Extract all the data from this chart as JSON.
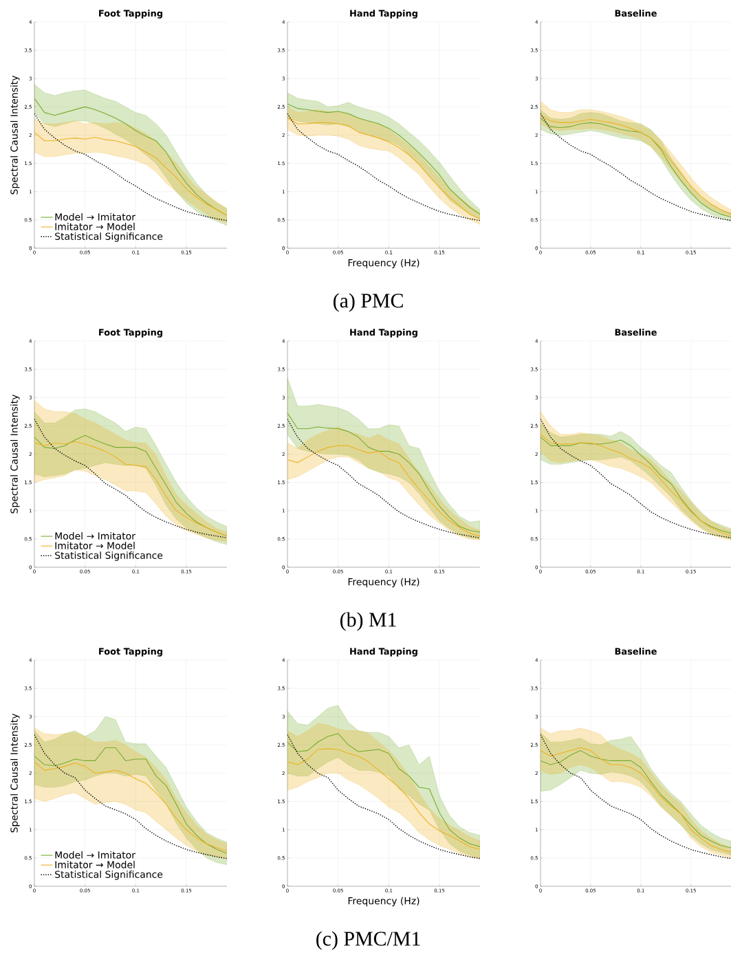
{
  "chart_data": [
    {
      "type": "line",
      "title": "Foot Tapping",
      "ylabel": "Spectral Causal Intensity",
      "x": [
        0,
        0.01,
        0.02,
        0.03,
        0.04,
        0.05,
        0.06,
        0.07,
        0.08,
        0.09,
        0.1,
        0.11,
        0.12,
        0.13,
        0.14,
        0.15,
        0.16,
        0.17,
        0.18,
        0.19
      ],
      "xlim": [
        0,
        0.19
      ],
      "ylim": [
        0,
        4
      ],
      "xticks": [
        0,
        0.05,
        0.1,
        0.15
      ],
      "yticks": [
        0,
        0.5,
        1,
        1.5,
        2,
        2.5,
        3,
        3.5,
        4
      ],
      "grid": true,
      "legend": "bottom left",
      "series": [
        {
          "name": "Model → Imitator",
          "color": "#77ac30",
          "values": [
            2.65,
            2.4,
            2.35,
            2.4,
            2.45,
            2.5,
            2.45,
            2.38,
            2.3,
            2.2,
            2.08,
            1.98,
            1.9,
            1.7,
            1.4,
            1.15,
            0.95,
            0.8,
            0.68,
            0.58
          ],
          "lower": [
            2.4,
            2.2,
            2.15,
            2.2,
            2.25,
            2.25,
            2.2,
            2.12,
            2.02,
            1.92,
            1.8,
            1.65,
            1.5,
            1.25,
            1.0,
            0.8,
            0.65,
            0.55,
            0.48,
            0.4
          ],
          "upper": [
            2.9,
            2.75,
            2.7,
            2.75,
            2.78,
            2.8,
            2.72,
            2.65,
            2.6,
            2.5,
            2.4,
            2.35,
            2.2,
            2.0,
            1.7,
            1.4,
            1.15,
            0.95,
            0.8,
            0.7
          ]
        },
        {
          "name": "Imitator → Model",
          "color": "#edb120",
          "values": [
            2.05,
            1.9,
            1.9,
            1.93,
            1.95,
            1.93,
            1.96,
            1.92,
            1.9,
            1.85,
            1.8,
            1.7,
            1.6,
            1.42,
            1.25,
            1.05,
            0.9,
            0.78,
            0.68,
            0.58
          ],
          "lower": [
            1.7,
            1.62,
            1.62,
            1.65,
            1.68,
            1.68,
            1.7,
            1.68,
            1.63,
            1.6,
            1.55,
            1.48,
            1.35,
            1.15,
            1.0,
            0.85,
            0.72,
            0.6,
            0.5,
            0.45
          ],
          "upper": [
            2.3,
            2.2,
            2.2,
            2.22,
            2.25,
            2.2,
            2.22,
            2.2,
            2.22,
            2.2,
            2.12,
            2.02,
            1.9,
            1.7,
            1.5,
            1.28,
            1.08,
            0.95,
            0.82,
            0.7
          ]
        },
        {
          "name": "Statistical Significance",
          "color": "#000000",
          "line_style": "dotted",
          "values": [
            2.38,
            2.1,
            1.95,
            1.82,
            1.72,
            1.66,
            1.55,
            1.45,
            1.33,
            1.2,
            1.1,
            0.98,
            0.88,
            0.8,
            0.72,
            0.65,
            0.6,
            0.56,
            0.52,
            0.49
          ]
        }
      ]
    },
    {
      "type": "line",
      "title": "Hand Tapping",
      "xlabel": "Frequency (Hz)",
      "annotations": [
        "(a) PMC"
      ],
      "x": [
        0,
        0.01,
        0.02,
        0.03,
        0.04,
        0.05,
        0.06,
        0.07,
        0.08,
        0.09,
        0.1,
        0.11,
        0.12,
        0.13,
        0.14,
        0.15,
        0.16,
        0.17,
        0.18,
        0.19
      ],
      "xlim": [
        0,
        0.19
      ],
      "ylim": [
        0,
        4
      ],
      "xticks": [
        0,
        0.05,
        0.1,
        0.15
      ],
      "yticks": [
        0,
        0.5,
        1,
        1.5,
        2,
        2.5,
        3,
        3.5,
        4
      ],
      "grid": true,
      "series": [
        {
          "color": "#77ac30",
          "values": [
            2.55,
            2.47,
            2.45,
            2.42,
            2.4,
            2.42,
            2.38,
            2.3,
            2.25,
            2.2,
            2.12,
            2.0,
            1.85,
            1.68,
            1.5,
            1.3,
            1.05,
            0.88,
            0.72,
            0.6
          ],
          "lower": [
            2.3,
            2.25,
            2.22,
            2.2,
            2.18,
            2.2,
            2.15,
            2.07,
            2.0,
            1.95,
            1.9,
            1.82,
            1.65,
            1.48,
            1.28,
            1.08,
            0.85,
            0.72,
            0.6,
            0.52
          ],
          "upper": [
            2.75,
            2.65,
            2.62,
            2.6,
            2.5,
            2.52,
            2.58,
            2.5,
            2.45,
            2.4,
            2.32,
            2.2,
            2.05,
            1.9,
            1.72,
            1.52,
            1.28,
            1.05,
            0.85,
            0.68
          ]
        },
        {
          "color": "#edb120",
          "values": [
            2.3,
            2.2,
            2.2,
            2.22,
            2.22,
            2.2,
            2.17,
            2.05,
            2.0,
            1.95,
            1.88,
            1.78,
            1.65,
            1.48,
            1.27,
            1.07,
            0.9,
            0.75,
            0.6,
            0.52
          ],
          "lower": [
            2.1,
            2.0,
            1.98,
            2.0,
            2.0,
            1.98,
            1.93,
            1.82,
            1.77,
            1.74,
            1.72,
            1.6,
            1.45,
            1.3,
            1.08,
            0.88,
            0.72,
            0.6,
            0.5,
            0.42
          ],
          "upper": [
            2.5,
            2.4,
            2.42,
            2.45,
            2.42,
            2.4,
            2.38,
            2.3,
            2.25,
            2.2,
            2.1,
            1.95,
            1.82,
            1.65,
            1.45,
            1.25,
            1.05,
            0.9,
            0.75,
            0.62
          ]
        },
        {
          "color": "#000000",
          "line_style": "dotted",
          "values": [
            2.38,
            2.1,
            1.95,
            1.82,
            1.72,
            1.66,
            1.55,
            1.45,
            1.33,
            1.2,
            1.1,
            0.98,
            0.88,
            0.8,
            0.72,
            0.65,
            0.6,
            0.56,
            0.52,
            0.49
          ]
        }
      ]
    },
    {
      "type": "line",
      "title": "Baseline",
      "x": [
        0,
        0.01,
        0.02,
        0.03,
        0.04,
        0.05,
        0.06,
        0.07,
        0.08,
        0.09,
        0.1,
        0.11,
        0.12,
        0.13,
        0.14,
        0.15,
        0.16,
        0.17,
        0.18,
        0.19
      ],
      "xlim": [
        0,
        0.19
      ],
      "ylim": [
        0,
        4
      ],
      "xticks": [
        0,
        0.05,
        0.1,
        0.15
      ],
      "yticks": [
        0,
        0.5,
        1,
        1.5,
        2,
        2.5,
        3,
        3.5,
        4
      ],
      "grid": true,
      "series": [
        {
          "color": "#77ac30",
          "values": [
            2.3,
            2.15,
            2.13,
            2.15,
            2.2,
            2.22,
            2.2,
            2.15,
            2.1,
            2.07,
            2.05,
            1.95,
            1.75,
            1.45,
            1.2,
            0.98,
            0.8,
            0.68,
            0.6,
            0.55
          ],
          "lower": [
            2.1,
            2.02,
            2.0,
            2.02,
            2.05,
            2.08,
            2.05,
            2.0,
            1.95,
            1.93,
            1.9,
            1.8,
            1.58,
            1.3,
            1.05,
            0.85,
            0.7,
            0.6,
            0.53,
            0.48
          ],
          "upper": [
            2.45,
            2.3,
            2.28,
            2.3,
            2.38,
            2.4,
            2.38,
            2.32,
            2.25,
            2.22,
            2.2,
            2.1,
            1.9,
            1.6,
            1.35,
            1.1,
            0.9,
            0.78,
            0.68,
            0.62
          ]
        },
        {
          "color": "#edb120",
          "values": [
            2.35,
            2.25,
            2.22,
            2.22,
            2.25,
            2.28,
            2.25,
            2.22,
            2.18,
            2.12,
            2.05,
            1.95,
            1.78,
            1.55,
            1.32,
            1.1,
            0.92,
            0.78,
            0.68,
            0.6
          ],
          "lower": [
            2.2,
            2.1,
            2.08,
            2.1,
            2.1,
            2.12,
            2.1,
            2.07,
            2.03,
            1.98,
            1.92,
            1.8,
            1.62,
            1.4,
            1.18,
            0.98,
            0.82,
            0.7,
            0.62,
            0.55
          ],
          "upper": [
            2.6,
            2.45,
            2.4,
            2.4,
            2.45,
            2.45,
            2.42,
            2.38,
            2.33,
            2.27,
            2.18,
            2.08,
            1.92,
            1.7,
            1.48,
            1.25,
            1.05,
            0.9,
            0.78,
            0.68
          ]
        },
        {
          "color": "#000000",
          "line_style": "dotted",
          "values": [
            2.38,
            2.1,
            1.95,
            1.82,
            1.72,
            1.66,
            1.55,
            1.45,
            1.33,
            1.2,
            1.1,
            0.98,
            0.88,
            0.8,
            0.72,
            0.65,
            0.6,
            0.56,
            0.52,
            0.49
          ]
        }
      ]
    },
    {
      "type": "line",
      "title": "Foot Tapping",
      "ylabel": "Spectral Causal Intensity",
      "x": [
        0,
        0.01,
        0.02,
        0.03,
        0.04,
        0.05,
        0.06,
        0.07,
        0.08,
        0.09,
        0.1,
        0.11,
        0.12,
        0.13,
        0.14,
        0.15,
        0.16,
        0.17,
        0.18,
        0.19
      ],
      "xlim": [
        0,
        0.19
      ],
      "ylim": [
        0,
        4
      ],
      "xticks": [
        0,
        0.05,
        0.1,
        0.15
      ],
      "yticks": [
        0,
        0.5,
        1,
        1.5,
        2,
        2.5,
        3,
        3.5,
        4
      ],
      "grid": true,
      "legend": "bottom left",
      "series": [
        {
          "name": "Model → Imitator",
          "color": "#77ac30",
          "values": [
            2.3,
            2.12,
            2.1,
            2.15,
            2.25,
            2.33,
            2.25,
            2.18,
            2.12,
            2.12,
            2.12,
            2.05,
            1.75,
            1.45,
            1.15,
            0.95,
            0.8,
            0.7,
            0.62,
            0.55
          ],
          "lower": [
            1.65,
            1.6,
            1.62,
            1.65,
            1.72,
            1.75,
            1.8,
            1.85,
            1.82,
            1.8,
            1.8,
            1.75,
            1.45,
            1.1,
            0.85,
            0.7,
            0.6,
            0.52,
            0.45,
            0.4
          ],
          "upper": [
            2.75,
            2.55,
            2.55,
            2.65,
            2.78,
            2.8,
            2.75,
            2.65,
            2.55,
            2.4,
            2.48,
            2.45,
            2.15,
            1.82,
            1.5,
            1.25,
            1.05,
            0.9,
            0.8,
            0.72
          ]
        },
        {
          "name": "Imitator → Model",
          "color": "#edb120",
          "values": [
            2.2,
            2.15,
            2.2,
            2.18,
            2.22,
            2.18,
            2.12,
            2.05,
            1.95,
            1.82,
            1.8,
            1.78,
            1.55,
            1.25,
            1.0,
            0.88,
            0.78,
            0.7,
            0.62,
            0.55
          ],
          "lower": [
            1.5,
            1.55,
            1.58,
            1.62,
            1.72,
            1.7,
            1.62,
            1.55,
            1.45,
            1.35,
            1.35,
            1.32,
            1.12,
            0.9,
            0.75,
            0.65,
            0.58,
            0.52,
            0.48,
            0.45
          ],
          "upper": [
            2.95,
            2.8,
            2.75,
            2.75,
            2.72,
            2.62,
            2.55,
            2.45,
            2.35,
            2.25,
            2.2,
            2.2,
            1.98,
            1.6,
            1.28,
            1.1,
            0.95,
            0.8,
            0.68,
            0.62
          ]
        },
        {
          "name": "Statistical Significance",
          "color": "#000000",
          "line_style": "dotted",
          "values": [
            2.62,
            2.3,
            2.1,
            1.98,
            1.88,
            1.8,
            1.65,
            1.48,
            1.38,
            1.27,
            1.12,
            0.98,
            0.88,
            0.8,
            0.73,
            0.67,
            0.62,
            0.58,
            0.55,
            0.52
          ]
        }
      ]
    },
    {
      "type": "line",
      "title": "Hand Tapping",
      "xlabel": "Frequency (Hz)",
      "annotations": [
        "(b) M1"
      ],
      "x": [
        0,
        0.01,
        0.02,
        0.03,
        0.04,
        0.05,
        0.06,
        0.07,
        0.08,
        0.09,
        0.1,
        0.11,
        0.12,
        0.13,
        0.14,
        0.15,
        0.16,
        0.17,
        0.18,
        0.19
      ],
      "xlim": [
        0,
        0.19
      ],
      "ylim": [
        0,
        4
      ],
      "xticks": [
        0,
        0.05,
        0.1,
        0.15
      ],
      "yticks": [
        0,
        0.5,
        1,
        1.5,
        2,
        2.5,
        3,
        3.5,
        4
      ],
      "grid": true,
      "series": [
        {
          "color": "#77ac30",
          "values": [
            2.73,
            2.45,
            2.45,
            2.48,
            2.46,
            2.45,
            2.4,
            2.3,
            2.12,
            2.05,
            2.05,
            2.0,
            1.85,
            1.65,
            1.35,
            1.08,
            0.88,
            0.72,
            0.65,
            0.62
          ],
          "lower": [
            2.35,
            2.1,
            2.05,
            2.02,
            2.0,
            2.0,
            1.98,
            1.9,
            1.75,
            1.68,
            1.65,
            1.6,
            1.5,
            1.3,
            1.05,
            0.82,
            0.68,
            0.58,
            0.52,
            0.5
          ],
          "upper": [
            3.35,
            2.85,
            2.85,
            2.88,
            2.85,
            2.82,
            2.75,
            2.62,
            2.45,
            2.45,
            2.52,
            2.5,
            2.15,
            2.1,
            1.7,
            1.35,
            1.1,
            0.9,
            0.8,
            0.82
          ]
        },
        {
          "color": "#edb120",
          "values": [
            1.9,
            1.85,
            1.95,
            2.05,
            2.12,
            2.15,
            2.15,
            2.08,
            2.02,
            2.05,
            1.92,
            1.85,
            1.6,
            1.38,
            1.18,
            0.98,
            0.82,
            0.7,
            0.6,
            0.55
          ],
          "lower": [
            1.55,
            1.6,
            1.7,
            1.8,
            1.9,
            1.95,
            1.95,
            1.85,
            1.75,
            1.7,
            1.58,
            1.52,
            1.3,
            1.1,
            0.92,
            0.78,
            0.65,
            0.55,
            0.5,
            0.48
          ],
          "upper": [
            2.2,
            2.1,
            2.25,
            2.35,
            2.42,
            2.48,
            2.4,
            2.35,
            2.28,
            2.35,
            2.25,
            2.18,
            1.92,
            1.68,
            1.45,
            1.2,
            1.0,
            0.85,
            0.72,
            0.65
          ]
        },
        {
          "color": "#000000",
          "line_style": "dotted",
          "values": [
            2.62,
            2.3,
            2.1,
            1.98,
            1.88,
            1.8,
            1.65,
            1.48,
            1.38,
            1.27,
            1.12,
            0.98,
            0.88,
            0.8,
            0.73,
            0.67,
            0.62,
            0.58,
            0.55,
            0.52
          ]
        }
      ]
    },
    {
      "type": "line",
      "title": "Baseline",
      "x": [
        0,
        0.01,
        0.02,
        0.03,
        0.04,
        0.05,
        0.06,
        0.07,
        0.08,
        0.09,
        0.1,
        0.11,
        0.12,
        0.13,
        0.14,
        0.15,
        0.16,
        0.17,
        0.18,
        0.19
      ],
      "xlim": [
        0,
        0.19
      ],
      "ylim": [
        0,
        4
      ],
      "xticks": [
        0,
        0.05,
        0.1,
        0.15
      ],
      "yticks": [
        0,
        0.5,
        1,
        1.5,
        2,
        2.5,
        3,
        3.5,
        4
      ],
      "grid": true,
      "series": [
        {
          "color": "#77ac30",
          "values": [
            2.3,
            2.15,
            2.15,
            2.15,
            2.2,
            2.18,
            2.18,
            2.2,
            2.25,
            2.15,
            1.98,
            1.82,
            1.62,
            1.48,
            1.22,
            1.0,
            0.82,
            0.72,
            0.65,
            0.6
          ],
          "lower": [
            1.9,
            1.82,
            1.82,
            1.85,
            1.88,
            1.9,
            1.9,
            1.92,
            1.95,
            1.88,
            1.75,
            1.6,
            1.42,
            1.25,
            1.02,
            0.85,
            0.7,
            0.6,
            0.55,
            0.5
          ],
          "upper": [
            2.55,
            2.38,
            2.3,
            2.32,
            2.35,
            2.36,
            2.35,
            2.32,
            2.4,
            2.3,
            2.12,
            1.98,
            1.8,
            1.68,
            1.42,
            1.18,
            0.98,
            0.82,
            0.75,
            0.68
          ]
        },
        {
          "color": "#edb120",
          "values": [
            2.35,
            2.2,
            2.18,
            2.18,
            2.2,
            2.2,
            2.15,
            2.08,
            2.02,
            1.92,
            1.85,
            1.75,
            1.55,
            1.35,
            1.18,
            0.98,
            0.82,
            0.7,
            0.62,
            0.55
          ],
          "lower": [
            2.05,
            1.88,
            1.85,
            1.88,
            1.9,
            1.9,
            1.85,
            1.78,
            1.75,
            1.68,
            1.6,
            1.5,
            1.32,
            1.15,
            0.98,
            0.82,
            0.68,
            0.58,
            0.52,
            0.48
          ],
          "upper": [
            2.75,
            2.5,
            2.35,
            2.35,
            2.38,
            2.35,
            2.32,
            2.25,
            2.2,
            2.08,
            2.0,
            1.9,
            1.72,
            1.52,
            1.35,
            1.15,
            0.95,
            0.82,
            0.72,
            0.65
          ]
        },
        {
          "color": "#000000",
          "line_style": "dotted",
          "values": [
            2.62,
            2.3,
            2.1,
            1.98,
            1.88,
            1.8,
            1.65,
            1.48,
            1.38,
            1.27,
            1.12,
            0.98,
            0.88,
            0.8,
            0.73,
            0.67,
            0.62,
            0.58,
            0.55,
            0.52
          ]
        }
      ]
    },
    {
      "type": "line",
      "title": "Foot Tapping",
      "ylabel": "Spectral Causal Intensity",
      "x": [
        0,
        0.01,
        0.02,
        0.03,
        0.04,
        0.05,
        0.06,
        0.07,
        0.08,
        0.09,
        0.1,
        0.11,
        0.12,
        0.13,
        0.14,
        0.15,
        0.16,
        0.17,
        0.18,
        0.19
      ],
      "xlim": [
        0,
        0.19
      ],
      "ylim": [
        0,
        4
      ],
      "xticks": [
        0,
        0.05,
        0.1,
        0.15
      ],
      "yticks": [
        0,
        0.5,
        1,
        1.5,
        2,
        2.5,
        3,
        3.5,
        4
      ],
      "grid": true,
      "legend": "bottom left",
      "series": [
        {
          "name": "Model → Imitator",
          "color": "#77ac30",
          "values": [
            2.3,
            2.15,
            2.13,
            2.18,
            2.25,
            2.22,
            2.22,
            2.45,
            2.45,
            2.22,
            2.25,
            2.25,
            1.95,
            1.78,
            1.45,
            1.1,
            0.9,
            0.75,
            0.65,
            0.58
          ],
          "lower": [
            1.8,
            1.75,
            1.75,
            1.78,
            1.85,
            1.88,
            1.95,
            2.0,
            2.0,
            1.95,
            1.98,
            1.95,
            1.7,
            1.45,
            1.12,
            0.85,
            0.65,
            0.5,
            0.42,
            0.38
          ],
          "upper": [
            2.75,
            2.55,
            2.6,
            2.7,
            2.75,
            2.65,
            2.75,
            3.0,
            2.95,
            2.55,
            2.52,
            2.52,
            2.3,
            2.1,
            1.75,
            1.4,
            1.15,
            0.95,
            0.85,
            0.78
          ]
        },
        {
          "name": "Imitator → Model",
          "color": "#edb120",
          "values": [
            2.2,
            2.05,
            2.08,
            2.12,
            2.18,
            2.12,
            2.0,
            2.02,
            2.05,
            2.0,
            1.9,
            1.82,
            1.65,
            1.45,
            1.2,
            1.0,
            0.85,
            0.75,
            0.68,
            0.62
          ],
          "lower": [
            1.55,
            1.5,
            1.55,
            1.62,
            1.65,
            1.55,
            1.45,
            1.48,
            1.5,
            1.45,
            1.35,
            1.3,
            1.15,
            1.0,
            0.85,
            0.72,
            0.62,
            0.55,
            0.52,
            0.5
          ],
          "upper": [
            2.8,
            2.7,
            2.68,
            2.7,
            2.72,
            2.65,
            2.55,
            2.55,
            2.58,
            2.5,
            2.38,
            2.28,
            2.1,
            1.88,
            1.55,
            1.3,
            1.08,
            0.92,
            0.82,
            0.75
          ]
        },
        {
          "name": "Statistical Significance",
          "color": "#000000",
          "line_style": "dotted",
          "values": [
            2.68,
            2.35,
            2.15,
            2.0,
            1.92,
            1.7,
            1.55,
            1.42,
            1.35,
            1.28,
            1.18,
            1.02,
            0.9,
            0.8,
            0.72,
            0.65,
            0.6,
            0.56,
            0.52,
            0.49
          ]
        }
      ]
    },
    {
      "type": "line",
      "title": "Hand Tapping",
      "xlabel": "Frequency (Hz)",
      "annotations": [
        "(c) PMC/M1"
      ],
      "x": [
        0,
        0.01,
        0.02,
        0.03,
        0.04,
        0.05,
        0.06,
        0.07,
        0.08,
        0.09,
        0.1,
        0.11,
        0.12,
        0.13,
        0.14,
        0.15,
        0.16,
        0.17,
        0.18,
        0.19
      ],
      "xlim": [
        0,
        0.19
      ],
      "ylim": [
        0,
        4
      ],
      "xticks": [
        0,
        0.05,
        0.1,
        0.15
      ],
      "yticks": [
        0,
        0.5,
        1,
        1.5,
        2,
        2.5,
        3,
        3.5,
        4
      ],
      "grid": true,
      "series": [
        {
          "color": "#77ac30",
          "values": [
            2.55,
            2.38,
            2.4,
            2.55,
            2.65,
            2.7,
            2.5,
            2.38,
            2.4,
            2.42,
            2.35,
            2.08,
            1.95,
            1.75,
            1.72,
            1.3,
            1.0,
            0.85,
            0.75,
            0.7
          ],
          "lower": [
            2.0,
            1.95,
            1.95,
            2.08,
            2.2,
            2.28,
            2.15,
            2.05,
            2.05,
            2.02,
            1.95,
            1.72,
            1.6,
            1.45,
            1.35,
            1.0,
            0.75,
            0.62,
            0.55,
            0.5
          ],
          "upper": [
            3.1,
            2.88,
            2.85,
            3.0,
            3.15,
            3.2,
            2.9,
            2.75,
            2.72,
            2.72,
            2.65,
            2.45,
            2.5,
            2.15,
            2.3,
            1.6,
            1.25,
            1.05,
            0.95,
            0.9
          ]
        },
        {
          "color": "#edb120",
          "values": [
            2.2,
            2.15,
            2.25,
            2.42,
            2.43,
            2.42,
            2.35,
            2.3,
            2.2,
            2.05,
            1.9,
            1.75,
            1.55,
            1.3,
            1.1,
            0.98,
            0.9,
            0.8,
            0.7,
            0.65
          ],
          "lower": [
            1.7,
            1.75,
            1.85,
            1.92,
            2.0,
            2.0,
            1.88,
            1.8,
            1.68,
            1.55,
            1.4,
            1.3,
            1.15,
            0.95,
            0.82,
            0.72,
            0.65,
            0.58,
            0.52,
            0.48
          ],
          "upper": [
            2.75,
            2.65,
            2.75,
            2.88,
            2.85,
            2.78,
            2.75,
            2.75,
            2.7,
            2.55,
            2.4,
            2.2,
            1.95,
            1.65,
            1.38,
            1.2,
            1.08,
            0.98,
            0.88,
            0.8
          ]
        },
        {
          "color": "#000000",
          "line_style": "dotted",
          "values": [
            2.68,
            2.35,
            2.15,
            2.0,
            1.92,
            1.7,
            1.55,
            1.42,
            1.35,
            1.28,
            1.18,
            1.02,
            0.9,
            0.8,
            0.72,
            0.65,
            0.6,
            0.56,
            0.52,
            0.49
          ]
        }
      ]
    },
    {
      "type": "line",
      "title": "Baseline",
      "x": [
        0,
        0.01,
        0.02,
        0.03,
        0.04,
        0.05,
        0.06,
        0.07,
        0.08,
        0.09,
        0.1,
        0.11,
        0.12,
        0.13,
        0.14,
        0.15,
        0.16,
        0.17,
        0.18,
        0.19
      ],
      "xlim": [
        0,
        0.19
      ],
      "ylim": [
        0,
        4
      ],
      "xticks": [
        0,
        0.05,
        0.1,
        0.15
      ],
      "yticks": [
        0,
        0.5,
        1,
        1.5,
        2,
        2.5,
        3,
        3.5,
        4
      ],
      "grid": true,
      "series": [
        {
          "color": "#77ac30",
          "values": [
            2.22,
            2.15,
            2.2,
            2.32,
            2.4,
            2.3,
            2.25,
            2.22,
            2.22,
            2.22,
            2.1,
            1.85,
            1.62,
            1.45,
            1.28,
            1.08,
            0.9,
            0.8,
            0.72,
            0.68
          ],
          "lower": [
            1.68,
            1.7,
            1.8,
            1.92,
            2.05,
            2.0,
            1.98,
            2.02,
            2.0,
            1.95,
            1.85,
            1.65,
            1.42,
            1.25,
            1.08,
            0.9,
            0.75,
            0.65,
            0.6,
            0.55
          ],
          "upper": [
            2.72,
            2.55,
            2.55,
            2.58,
            2.62,
            2.52,
            2.5,
            2.58,
            2.6,
            2.65,
            2.4,
            2.08,
            1.85,
            1.65,
            1.5,
            1.28,
            1.08,
            0.95,
            0.85,
            0.8
          ]
        },
        {
          "color": "#edb120",
          "values": [
            2.4,
            2.3,
            2.35,
            2.4,
            2.45,
            2.4,
            2.25,
            2.15,
            2.15,
            2.1,
            2.0,
            1.8,
            1.58,
            1.42,
            1.28,
            1.0,
            0.85,
            0.72,
            0.65,
            0.6
          ],
          "lower": [
            2.05,
            1.98,
            2.0,
            2.1,
            2.15,
            2.1,
            1.98,
            1.85,
            1.85,
            1.82,
            1.75,
            1.6,
            1.4,
            1.25,
            1.1,
            0.85,
            0.7,
            0.6,
            0.55,
            0.5
          ],
          "upper": [
            2.8,
            2.7,
            2.75,
            2.75,
            2.8,
            2.75,
            2.68,
            2.5,
            2.42,
            2.35,
            2.25,
            2.02,
            1.78,
            1.6,
            1.45,
            1.18,
            0.98,
            0.85,
            0.75,
            0.68
          ]
        },
        {
          "color": "#000000",
          "line_style": "dotted",
          "values": [
            2.68,
            2.35,
            2.15,
            2.0,
            1.92,
            1.7,
            1.55,
            1.42,
            1.35,
            1.28,
            1.18,
            1.02,
            0.9,
            0.8,
            0.72,
            0.65,
            0.6,
            0.56,
            0.52,
            0.49
          ]
        }
      ]
    }
  ]
}
